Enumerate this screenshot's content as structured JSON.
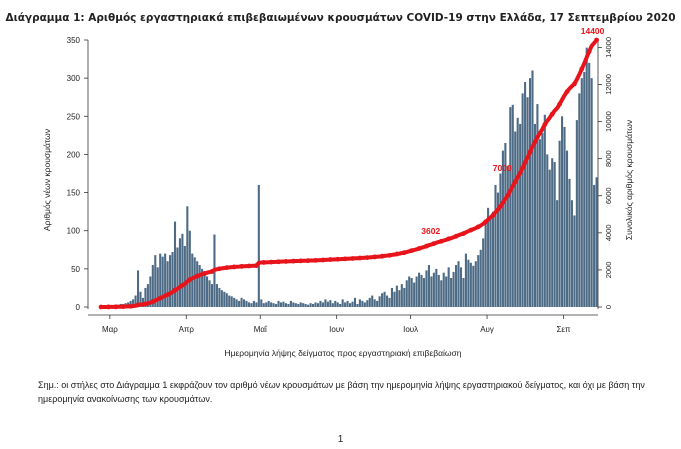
{
  "chart_data": {
    "type": "bar",
    "title": "Διάγραμμα 1: Αριθμός εργαστηριακά επιβεβαιωμένων κρουσμάτων COVID-19 στην Ελλάδα, 17 Σεπτεμβρίου 2020",
    "xlabel": "Ημερομηνία λήψης δείγματος προς εργαστηριακή επιβεβαίωση",
    "ylabel": "Αριθμός νέων κρουσμάτων",
    "y2label": "Συνολικός αριθμός κρουσμάτων",
    "month_labels": [
      "Μαρ",
      "Απρ",
      "Μαΐ",
      "Ιουν",
      "Ιουλ",
      "Αυγ",
      "Σεπ"
    ],
    "ylim": [
      0,
      350
    ],
    "yticks": [
      0,
      50,
      100,
      150,
      200,
      250,
      300,
      350
    ],
    "y2lim": [
      0,
      14400
    ],
    "y2ticks": [
      0,
      2000,
      4000,
      6000,
      8000,
      10000,
      12000,
      14000
    ],
    "start_date": "2020-02-26",
    "daily_values": [
      1,
      1,
      1,
      1,
      1,
      2,
      3,
      3,
      4,
      4,
      5,
      6,
      8,
      10,
      15,
      48,
      20,
      12,
      25,
      30,
      40,
      55,
      68,
      52,
      70,
      66,
      70,
      60,
      68,
      72,
      112,
      78,
      90,
      96,
      80,
      132,
      100,
      70,
      65,
      60,
      55,
      50,
      45,
      40,
      35,
      30,
      95,
      30,
      25,
      22,
      20,
      18,
      15,
      14,
      12,
      10,
      8,
      12,
      10,
      8,
      6,
      5,
      8,
      6,
      160,
      10,
      5,
      6,
      8,
      6,
      5,
      4,
      8,
      6,
      7,
      5,
      4,
      8,
      6,
      5,
      4,
      6,
      5,
      4,
      3,
      5,
      4,
      6,
      5,
      8,
      6,
      10,
      7,
      9,
      5,
      8,
      6,
      4,
      10,
      6,
      8,
      5,
      7,
      12,
      4,
      10,
      8,
      6,
      9,
      12,
      15,
      10,
      8,
      14,
      18,
      20,
      15,
      12,
      25,
      20,
      28,
      22,
      30,
      25,
      35,
      40,
      38,
      32,
      40,
      45,
      42,
      38,
      48,
      55,
      40,
      45,
      50,
      42,
      35,
      45,
      40,
      52,
      38,
      46,
      55,
      60,
      52,
      38,
      70,
      62,
      58,
      54,
      60,
      68,
      75,
      90,
      110,
      130,
      115,
      125,
      160,
      150,
      175,
      205,
      215,
      185,
      262,
      265,
      230,
      248,
      240,
      280,
      295,
      275,
      300,
      310,
      240,
      266,
      220,
      228,
      252,
      200,
      180,
      195,
      190,
      140,
      218,
      250,
      236,
      205,
      168,
      140,
      120,
      245,
      280,
      300,
      308,
      340,
      320,
      300,
      160,
      170
    ],
    "cumulative_labels": [
      {
        "value": 3602,
        "label": "3602"
      },
      {
        "value": 7000,
        "label": "7000"
      },
      {
        "value": 14400,
        "label": "14400"
      }
    ],
    "colors": {
      "bars": "#4d6b85",
      "cumulative": "#e8141b"
    }
  },
  "note": "Σημ.: οι στήλες στο Διάγραμμα 1 εκφράζουν τον αριθμό νέων κρουσμάτων με βάση την ημερομηνία λήψης εργαστηριακού δείγματος, και όχι με βάση την ημερομηνία ανακοίνωσης των κρουσμάτων.",
  "page_number": "1"
}
